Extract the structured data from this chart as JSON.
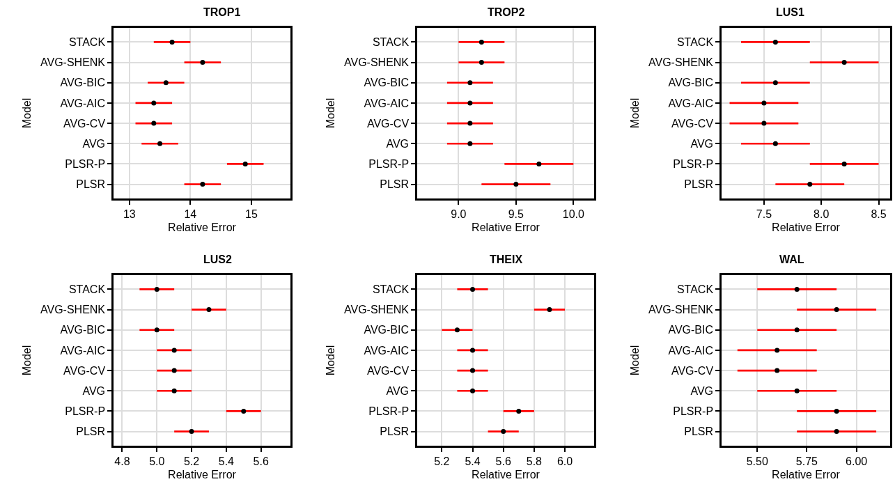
{
  "chart_data": [
    {
      "type": "scatter",
      "title": "TROP1",
      "xlabel": "Relative Error",
      "ylabel": "Model",
      "orientation": "horizontal",
      "categories": [
        "STACK",
        "AVG-SHENK",
        "AVG-BIC",
        "AVG-AIC",
        "AVG-CV",
        "AVG",
        "PLSR-P",
        "PLSR"
      ],
      "xlim": [
        12.74,
        15.64
      ],
      "xticks": [
        13,
        14,
        15
      ],
      "grid": true,
      "marker": "circle",
      "series": [
        {
          "type": "bar",
          "color": "#ff0000",
          "base": [
            13.4,
            13.9,
            13.3,
            13.1,
            13.1,
            13.2,
            14.6,
            13.9
          ],
          "values": [
            0.6,
            0.6,
            0.6,
            0.6,
            0.6,
            0.6,
            0.6,
            0.6
          ]
        },
        {
          "color": "#000000",
          "values": [
            13.7,
            14.2,
            13.6,
            13.4,
            13.4,
            13.5,
            14.9,
            14.2
          ]
        }
      ]
    },
    {
      "type": "scatter",
      "title": "TROP2",
      "xlabel": "Relative Error",
      "ylabel": "Model",
      "orientation": "horizontal",
      "categories": [
        "STACK",
        "AVG-SHENK",
        "AVG-BIC",
        "AVG-AIC",
        "AVG-CV",
        "AVG",
        "PLSR-P",
        "PLSR"
      ],
      "xlim": [
        8.64,
        10.18
      ],
      "xticks": [
        {
          "value": 9,
          "label": "9.0"
        },
        9.5,
        {
          "value": 10,
          "label": "10.0"
        }
      ],
      "grid": true,
      "marker": "circle",
      "series": [
        {
          "type": "bar",
          "color": "#ff0000",
          "base": [
            9.0,
            9.0,
            8.9,
            8.9,
            8.9,
            8.9,
            9.4,
            9.2
          ],
          "values": [
            0.4,
            0.4,
            0.4,
            0.4,
            0.4,
            0.4,
            0.6,
            0.6
          ]
        },
        {
          "color": "#000000",
          "values": [
            9.2,
            9.2,
            9.1,
            9.1,
            9.1,
            9.1,
            9.7,
            9.5
          ]
        }
      ]
    },
    {
      "type": "scatter",
      "title": "LUS1",
      "xlabel": "Relative Error",
      "ylabel": "Model",
      "orientation": "horizontal",
      "categories": [
        "STACK",
        "AVG-SHENK",
        "AVG-BIC",
        "AVG-AIC",
        "AVG-CV",
        "AVG",
        "PLSR-P",
        "PLSR"
      ],
      "xlim": [
        7.13,
        8.6
      ],
      "xticks": [
        7.5,
        {
          "value": 8,
          "label": "8.0"
        },
        8.5
      ],
      "grid": true,
      "marker": "circle",
      "series": [
        {
          "type": "bar",
          "color": "#ff0000",
          "base": [
            7.3,
            7.9,
            7.3,
            7.2,
            7.2,
            7.3,
            7.9,
            7.6
          ],
          "values": [
            0.6,
            0.6,
            0.6,
            0.6,
            0.6,
            0.6,
            0.6,
            0.6
          ]
        },
        {
          "color": "#000000",
          "values": [
            7.6,
            8.2,
            7.6,
            7.5,
            7.5,
            7.6,
            8.2,
            7.9
          ]
        }
      ]
    },
    {
      "type": "scatter",
      "title": "LUS2",
      "xlabel": "Relative Error",
      "ylabel": "Model",
      "orientation": "horizontal",
      "categories": [
        "STACK",
        "AVG-SHENK",
        "AVG-BIC",
        "AVG-AIC",
        "AVG-CV",
        "AVG",
        "PLSR-P",
        "PLSR"
      ],
      "xlim": [
        4.75,
        5.77
      ],
      "xticks": [
        4.8,
        {
          "value": 5,
          "label": "5.0"
        },
        5.2,
        5.4,
        5.6
      ],
      "grid": true,
      "marker": "circle",
      "series": [
        {
          "type": "bar",
          "color": "#ff0000",
          "base": [
            4.9,
            5.2,
            4.9,
            5.0,
            5.0,
            5.0,
            5.4,
            5.1
          ],
          "values": [
            0.2,
            0.2,
            0.2,
            0.2,
            0.2,
            0.2,
            0.2,
            0.2
          ]
        },
        {
          "color": "#000000",
          "values": [
            5.0,
            5.3,
            5.0,
            5.1,
            5.1,
            5.1,
            5.5,
            5.2
          ]
        }
      ]
    },
    {
      "type": "scatter",
      "title": "THEIX",
      "xlabel": "Relative Error",
      "ylabel": "Model",
      "orientation": "horizontal",
      "categories": [
        "STACK",
        "AVG-SHENK",
        "AVG-BIC",
        "AVG-AIC",
        "AVG-CV",
        "AVG",
        "PLSR-P",
        "PLSR"
      ],
      "xlim": [
        5.04,
        6.19
      ],
      "xticks": [
        5.2,
        5.4,
        5.6,
        5.8,
        {
          "value": 6,
          "label": "6.0"
        }
      ],
      "grid": true,
      "marker": "circle",
      "series": [
        {
          "type": "bar",
          "color": "#ff0000",
          "base": [
            5.3,
            5.8,
            5.2,
            5.3,
            5.3,
            5.3,
            5.6,
            5.5
          ],
          "values": [
            0.2,
            0.2,
            0.2,
            0.2,
            0.2,
            0.2,
            0.2,
            0.2
          ]
        },
        {
          "color": "#000000",
          "values": [
            5.4,
            5.9,
            5.3,
            5.4,
            5.4,
            5.4,
            5.7,
            5.6
          ]
        }
      ]
    },
    {
      "type": "scatter",
      "title": "WAL",
      "xlabel": "Relative Error",
      "ylabel": "Model",
      "orientation": "horizontal",
      "categories": [
        "STACK",
        "AVG-SHENK",
        "AVG-BIC",
        "AVG-AIC",
        "AVG-CV",
        "AVG",
        "PLSR-P",
        "PLSR"
      ],
      "xlim": [
        5.32,
        6.17
      ],
      "xticks": [
        {
          "value": 5.5,
          "label": "5.50"
        },
        5.75,
        {
          "value": 6,
          "label": "6.00"
        }
      ],
      "grid": true,
      "marker": "circle",
      "series": [
        {
          "type": "bar",
          "color": "#ff0000",
          "base": [
            5.5,
            5.7,
            5.5,
            5.4,
            5.4,
            5.5,
            5.7,
            5.7
          ],
          "values": [
            0.4,
            0.4,
            0.4,
            0.4,
            0.4,
            0.4,
            0.4,
            0.4
          ]
        },
        {
          "color": "#000000",
          "values": [
            5.7,
            5.9,
            5.7,
            5.6,
            5.6,
            5.7,
            5.9,
            5.9
          ]
        }
      ]
    }
  ]
}
